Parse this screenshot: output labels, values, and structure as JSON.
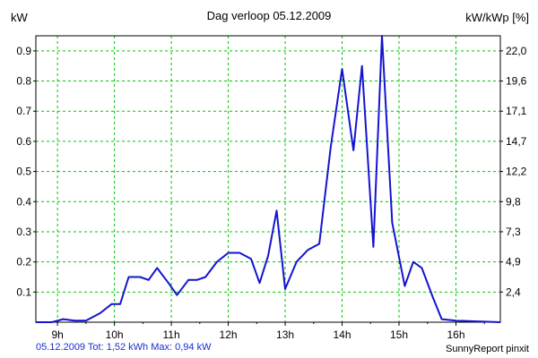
{
  "chart_data": {
    "type": "line",
    "title": "Dag  verloop 05.12.2009",
    "ylabel_left": "kW",
    "ylabel_right": "kW/kWp [%]",
    "x_ticks": [
      {
        "hour": 9,
        "label": "9h"
      },
      {
        "hour": 10,
        "label": "10h"
      },
      {
        "hour": 11,
        "label": "11h"
      },
      {
        "hour": 12,
        "label": "12h"
      },
      {
        "hour": 13,
        "label": "13h"
      },
      {
        "hour": 14,
        "label": "14h"
      },
      {
        "hour": 15,
        "label": "15h"
      },
      {
        "hour": 16,
        "label": "16h"
      }
    ],
    "xlim": [
      8.62,
      16.78
    ],
    "ylim": [
      0,
      0.95
    ],
    "y_ticks_left": [
      "0.1",
      "0.2",
      "0.3",
      "0.4",
      "0.5",
      "0.6",
      "0.7",
      "0.8",
      "0.9"
    ],
    "y_ticks_right": [
      "2,4",
      "4,9",
      "7,3",
      "9,8",
      "12,2",
      "14,7",
      "17,1",
      "19,6",
      "22,0"
    ],
    "grid": true,
    "line_color": "#1414d0",
    "grid_color": "#00c800",
    "series": [
      {
        "x": [
          8.62,
          8.9,
          9.1,
          9.3,
          9.5,
          9.75,
          9.95,
          10.1,
          10.25,
          10.45,
          10.6,
          10.75,
          10.95,
          11.1,
          11.3,
          11.45,
          11.6,
          11.8,
          12.0,
          12.2,
          12.4,
          12.55,
          12.7,
          12.85,
          13.0,
          13.2,
          13.4,
          13.6,
          13.8,
          14.0,
          14.2,
          14.35,
          14.55,
          14.7,
          14.88,
          15.1,
          15.25,
          15.4,
          15.6,
          15.75,
          16.0,
          16.78
        ],
        "y": [
          0.0,
          0.0,
          0.01,
          0.005,
          0.005,
          0.03,
          0.06,
          0.06,
          0.15,
          0.15,
          0.14,
          0.18,
          0.13,
          0.09,
          0.14,
          0.14,
          0.15,
          0.2,
          0.23,
          0.23,
          0.21,
          0.13,
          0.22,
          0.37,
          0.11,
          0.2,
          0.24,
          0.26,
          0.58,
          0.84,
          0.57,
          0.85,
          0.25,
          0.95,
          0.33,
          0.12,
          0.2,
          0.18,
          0.08,
          0.01,
          0.005,
          0.0
        ]
      }
    ]
  },
  "footer_left": "05.12.2009 Tot: 1,52 kWh Max: 0,94 kW",
  "footer_right": "SunnyReport pinxit"
}
